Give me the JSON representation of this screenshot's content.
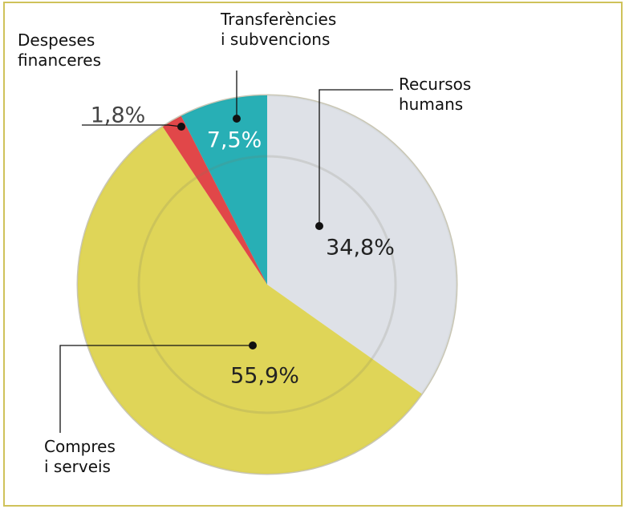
{
  "chart_data": {
    "type": "pie",
    "categories": [
      "Recursos\nhumans",
      "Compres\ni serveis",
      "Despeses\nfinanceres",
      "Transferències\ni subvencions"
    ],
    "values": [
      34.8,
      55.9,
      1.8,
      7.5
    ],
    "value_labels": [
      "34,8%",
      "55,9%",
      "1,8%",
      "7,5%"
    ],
    "colors": [
      "#d9dee6",
      "#ddd24c",
      "#e0383c",
      "#17a9b1"
    ]
  }
}
